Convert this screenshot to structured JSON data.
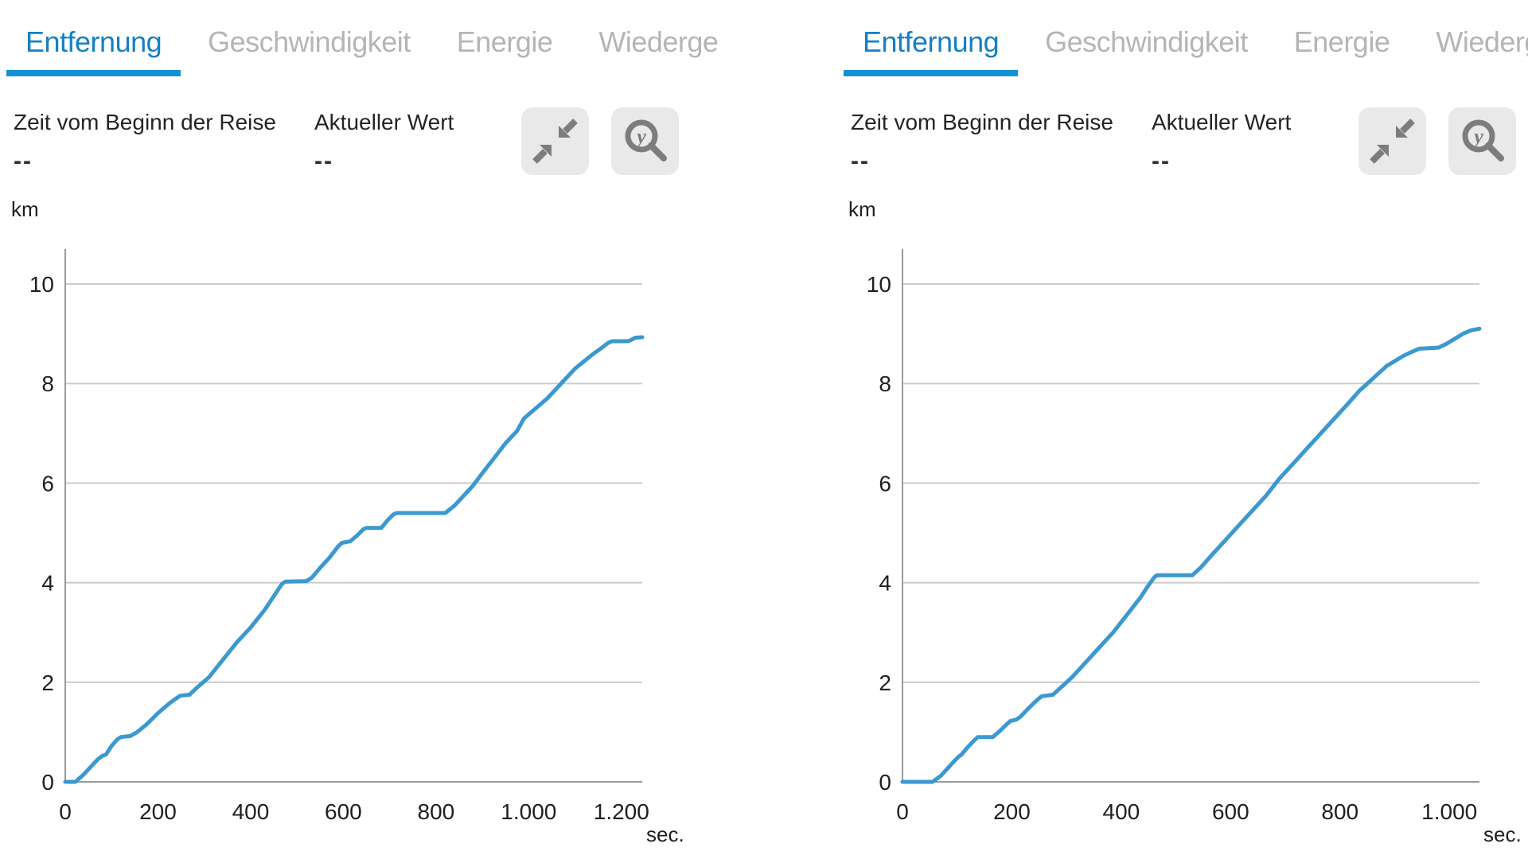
{
  "colors": {
    "accent": "#1480c5",
    "underline": "#1391d4",
    "line": "#3b99cf",
    "inactive_tab": "#b5b5b5",
    "grid": "#cccccc",
    "axis": "#9a9a9a",
    "icon": "#7d7d7d",
    "tick_text": "#1f1f1f",
    "button_bg": "#e9e9e9"
  },
  "tabs": [
    {
      "label": "Entfernung",
      "active": true
    },
    {
      "label": "Geschwindigkeit",
      "active": false
    },
    {
      "label": "Energie",
      "active": false
    },
    {
      "label": "Wiederge",
      "active": false
    }
  ],
  "panels": [
    {
      "stat1_label": "Zeit vom Beginn der Reise",
      "stat1_value": "--",
      "stat2_label": "Aktueller Wert",
      "stat2_value": "--",
      "y_unit": "km",
      "x_unit": "sec."
    },
    {
      "stat1_label": "Zeit vom Beginn der Reise",
      "stat1_value": "--",
      "stat2_label": "Aktueller Wert",
      "stat2_value": "--",
      "y_unit": "km",
      "x_unit": "sec."
    }
  ],
  "chart_data": [
    {
      "type": "line",
      "title": "Entfernung",
      "xlabel": "sec.",
      "ylabel": "km",
      "xlim": [
        0,
        1245
      ],
      "ylim": [
        0,
        10
      ],
      "grid": true,
      "y_ticks": [
        0,
        2,
        4,
        6,
        8,
        10
      ],
      "x_ticks": [
        {
          "v": 0,
          "label": "0"
        },
        {
          "v": 200,
          "label": "200"
        },
        {
          "v": 400,
          "label": "400"
        },
        {
          "v": 600,
          "label": "600"
        },
        {
          "v": 800,
          "label": "800"
        },
        {
          "v": 1000,
          "label": "1.000"
        },
        {
          "v": 1200,
          "label": "1.200"
        }
      ],
      "series": [
        {
          "name": "Entfernung",
          "color": "#3b99cf",
          "points": [
            [
              0,
              0
            ],
            [
              22,
              0
            ],
            [
              40,
              0.15
            ],
            [
              55,
              0.3
            ],
            [
              70,
              0.45
            ],
            [
              80,
              0.52
            ],
            [
              88,
              0.55
            ],
            [
              100,
              0.72
            ],
            [
              112,
              0.85
            ],
            [
              120,
              0.9
            ],
            [
              140,
              0.92
            ],
            [
              155,
              1.0
            ],
            [
              175,
              1.15
            ],
            [
              200,
              1.38
            ],
            [
              225,
              1.58
            ],
            [
              240,
              1.68
            ],
            [
              248,
              1.73
            ],
            [
              268,
              1.75
            ],
            [
              285,
              1.9
            ],
            [
              310,
              2.1
            ],
            [
              340,
              2.45
            ],
            [
              370,
              2.8
            ],
            [
              400,
              3.1
            ],
            [
              430,
              3.45
            ],
            [
              455,
              3.8
            ],
            [
              468,
              3.98
            ],
            [
              475,
              4.02
            ],
            [
              520,
              4.03
            ],
            [
              532,
              4.1
            ],
            [
              550,
              4.3
            ],
            [
              570,
              4.5
            ],
            [
              588,
              4.72
            ],
            [
              597,
              4.8
            ],
            [
              615,
              4.83
            ],
            [
              630,
              4.95
            ],
            [
              643,
              5.07
            ],
            [
              650,
              5.1
            ],
            [
              682,
              5.1
            ],
            [
              695,
              5.25
            ],
            [
              708,
              5.37
            ],
            [
              715,
              5.4
            ],
            [
              820,
              5.4
            ],
            [
              840,
              5.55
            ],
            [
              860,
              5.75
            ],
            [
              880,
              5.95
            ],
            [
              900,
              6.2
            ],
            [
              925,
              6.5
            ],
            [
              950,
              6.8
            ],
            [
              975,
              7.05
            ],
            [
              990,
              7.3
            ],
            [
              1000,
              7.38
            ],
            [
              1015,
              7.5
            ],
            [
              1040,
              7.7
            ],
            [
              1060,
              7.9
            ],
            [
              1080,
              8.1
            ],
            [
              1100,
              8.3
            ],
            [
              1120,
              8.45
            ],
            [
              1140,
              8.6
            ],
            [
              1158,
              8.72
            ],
            [
              1172,
              8.82
            ],
            [
              1180,
              8.85
            ],
            [
              1215,
              8.85
            ],
            [
              1222,
              8.88
            ],
            [
              1230,
              8.92
            ],
            [
              1245,
              8.93
            ]
          ]
        }
      ]
    },
    {
      "type": "line",
      "title": "Entfernung",
      "xlabel": "sec.",
      "ylabel": "km",
      "xlim": [
        0,
        1055
      ],
      "ylim": [
        0,
        10
      ],
      "grid": true,
      "y_ticks": [
        0,
        2,
        4,
        6,
        8,
        10
      ],
      "x_ticks": [
        {
          "v": 0,
          "label": "0"
        },
        {
          "v": 200,
          "label": "200"
        },
        {
          "v": 400,
          "label": "400"
        },
        {
          "v": 600,
          "label": "600"
        },
        {
          "v": 800,
          "label": "800"
        },
        {
          "v": 1000,
          "label": "1.000"
        }
      ],
      "series": [
        {
          "name": "Entfernung",
          "color": "#3b99cf",
          "points": [
            [
              0,
              0
            ],
            [
              55,
              0
            ],
            [
              70,
              0.12
            ],
            [
              85,
              0.3
            ],
            [
              95,
              0.42
            ],
            [
              102,
              0.5
            ],
            [
              108,
              0.55
            ],
            [
              118,
              0.68
            ],
            [
              130,
              0.82
            ],
            [
              138,
              0.9
            ],
            [
              165,
              0.9
            ],
            [
              178,
              1.02
            ],
            [
              190,
              1.15
            ],
            [
              197,
              1.22
            ],
            [
              208,
              1.25
            ],
            [
              215,
              1.3
            ],
            [
              228,
              1.45
            ],
            [
              240,
              1.58
            ],
            [
              250,
              1.68
            ],
            [
              255,
              1.72
            ],
            [
              275,
              1.75
            ],
            [
              290,
              1.9
            ],
            [
              310,
              2.1
            ],
            [
              335,
              2.4
            ],
            [
              360,
              2.7
            ],
            [
              385,
              3.0
            ],
            [
              410,
              3.35
            ],
            [
              435,
              3.7
            ],
            [
              450,
              3.95
            ],
            [
              460,
              4.1
            ],
            [
              465,
              4.15
            ],
            [
              530,
              4.15
            ],
            [
              545,
              4.3
            ],
            [
              565,
              4.55
            ],
            [
              590,
              4.85
            ],
            [
              615,
              5.15
            ],
            [
              640,
              5.45
            ],
            [
              665,
              5.75
            ],
            [
              690,
              6.1
            ],
            [
              715,
              6.4
            ],
            [
              740,
              6.7
            ],
            [
              765,
              7.0
            ],
            [
              790,
              7.3
            ],
            [
              815,
              7.6
            ],
            [
              835,
              7.85
            ],
            [
              855,
              8.05
            ],
            [
              870,
              8.2
            ],
            [
              885,
              8.35
            ],
            [
              900,
              8.45
            ],
            [
              915,
              8.55
            ],
            [
              930,
              8.63
            ],
            [
              945,
              8.7
            ],
            [
              980,
              8.72
            ],
            [
              995,
              8.8
            ],
            [
              1010,
              8.9
            ],
            [
              1025,
              9.0
            ],
            [
              1040,
              9.07
            ],
            [
              1055,
              9.1
            ]
          ]
        }
      ]
    }
  ]
}
